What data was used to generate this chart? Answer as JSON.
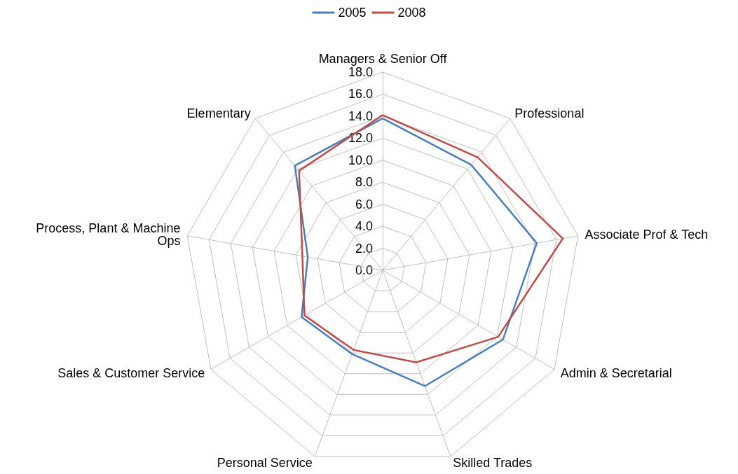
{
  "chart_data": {
    "type": "radar",
    "categories": [
      "Managers & Senior Off",
      "Professional",
      "Associate Prof & Tech",
      "Admin & Secretarial",
      "Skilled Trades",
      "Personal Service",
      "Sales & Customer Service",
      "Process, Plant & Machine Ops",
      "Elementary"
    ],
    "series": [
      {
        "name": "2005",
        "color": "#4a7ebb",
        "values": [
          13.8,
          12.5,
          14.2,
          12.6,
          11.2,
          8.1,
          8.5,
          6.9,
          12.4
        ]
      },
      {
        "name": "2008",
        "color": "#be4b48",
        "values": [
          14.1,
          13.4,
          16.6,
          12.1,
          8.9,
          7.7,
          8.2,
          7.4,
          11.8
        ]
      }
    ],
    "ylim": [
      0,
      18
    ],
    "yticks": [
      {
        "value": 0,
        "label": "0.0"
      },
      {
        "value": 2,
        "label": "2.0"
      },
      {
        "value": 4,
        "label": "4.0"
      },
      {
        "value": 6,
        "label": "6.0"
      },
      {
        "value": 8,
        "label": "8.0"
      },
      {
        "value": 10,
        "label": "10.0"
      },
      {
        "value": 12,
        "label": "12.0"
      },
      {
        "value": 14,
        "label": "14.0"
      },
      {
        "value": 16,
        "label": "16.0"
      },
      {
        "value": 18,
        "label": "18.0"
      }
    ],
    "legend": "top",
    "marker": "none",
    "line_style": "solid",
    "grid": true
  }
}
